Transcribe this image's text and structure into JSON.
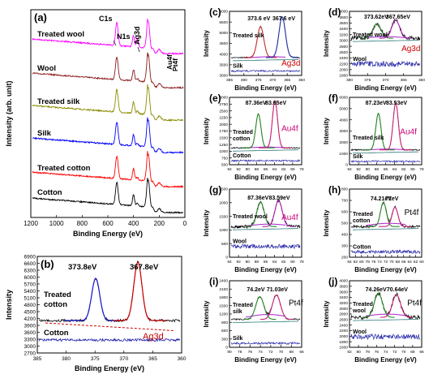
{
  "chart_data": [
    {
      "id": "a",
      "panel_label": "(a)",
      "type": "line",
      "xlabel": "Binding Energy (eV)",
      "ylabel": "Intensity (arb. unit)",
      "xlim": [
        1200,
        0
      ],
      "x_ticks": [
        "1200",
        "1000",
        "800",
        "600",
        "400",
        "200",
        "0"
      ],
      "peak_labels": [
        "C1s",
        "N1s",
        "Ag3d",
        "Au4f",
        "Pt4f"
      ],
      "series": [
        {
          "name": "Treated wool",
          "color": "#ff00ff"
        },
        {
          "name": "Wool",
          "color": "#8b1a1a"
        },
        {
          "name": "Treated silk",
          "color": "#8b8b00"
        },
        {
          "name": "Silk",
          "color": "#0000ff"
        },
        {
          "name": "Treated cotton",
          "color": "#ff0000"
        },
        {
          "name": "Cotton",
          "color": "#000000"
        }
      ]
    },
    {
      "id": "b",
      "panel_label": "(b)",
      "type": "line",
      "xlabel": "Binding Energy (eV)",
      "ylabel": "Intensity",
      "xlim": [
        385,
        360
      ],
      "ylim": [
        2700,
        7000
      ],
      "x_ticks": [
        "385",
        "380",
        "375",
        "370",
        "365",
        "360"
      ],
      "y_ticks": [
        "2700",
        "3000",
        "3300",
        "3600",
        "3900",
        "4200",
        "4500",
        "4800",
        "5100",
        "5400",
        "5700",
        "6000",
        "6300",
        "6600",
        "6900"
      ],
      "peaks": [
        "373.8eV",
        "367.8eV"
      ],
      "element": "Ag3d",
      "series": [
        {
          "name": "Treated cotton"
        },
        {
          "name": "Cotton"
        }
      ]
    },
    {
      "id": "c",
      "panel_label": "(c)",
      "type": "line",
      "xlabel": "Binding Energy (eV)",
      "ylabel": "Intensity",
      "x_ticks": [
        "385",
        "380",
        "375",
        "370",
        "365",
        "360"
      ],
      "y_ticks": [
        "3000",
        "3500",
        "4000",
        "4500",
        "5000",
        "5500",
        "6000"
      ],
      "peaks": [
        "373.6 eV",
        "367.6 eV"
      ],
      "element": "Ag3d",
      "series": [
        {
          "name": "Treated silk"
        },
        {
          "name": "Silk"
        }
      ]
    },
    {
      "id": "d",
      "panel_label": "(d)",
      "type": "line",
      "xlabel": "Binding Energy (eV)",
      "ylabel": "Intensity",
      "x_ticks": [
        "380",
        "375",
        "370",
        "365",
        "360"
      ],
      "y_ticks": [
        "1800",
        "2000",
        "2200",
        "2400",
        "2600",
        "2800",
        "3000",
        "3200",
        "3400",
        "3600",
        "3800",
        "4000"
      ],
      "peaks": [
        "373.62eV",
        "367.65eV"
      ],
      "element": "Ag3d",
      "series": [
        {
          "name": "Treated wool"
        },
        {
          "name": "Wool"
        }
      ]
    },
    {
      "id": "e",
      "panel_label": "(e)",
      "type": "line",
      "xlabel": "Binding Energy (eV)",
      "ylabel": "Intensity",
      "x_ticks": [
        "94",
        "92",
        "90",
        "88",
        "86",
        "84",
        "82",
        "80",
        "78"
      ],
      "y_ticks": [
        "500",
        "750",
        "1000",
        "1250",
        "1500",
        "1750",
        "2000",
        "2250",
        "2500",
        "2750",
        "3000"
      ],
      "peaks": [
        "87.36eV",
        "83.65eV"
      ],
      "element": "Au4f",
      "series": [
        {
          "name": "Treated cotton"
        },
        {
          "name": "Cotton"
        }
      ]
    },
    {
      "id": "f",
      "panel_label": "(f)",
      "type": "line",
      "xlabel": "Binding Energy (eV)",
      "ylabel": "Intensity",
      "x_ticks": [
        "94",
        "92",
        "90",
        "88",
        "86",
        "84",
        "82",
        "80",
        "78"
      ],
      "y_ticks": [
        "0",
        "1000",
        "2000",
        "3000",
        "4000",
        "5000",
        "6000"
      ],
      "peaks": [
        "87.23eV",
        "83.53eV"
      ],
      "element": "Au4f",
      "series": [
        {
          "name": "Treated silk"
        },
        {
          "name": "Silk"
        }
      ]
    },
    {
      "id": "g",
      "panel_label": "(g)",
      "type": "line",
      "xlabel": "Binding Energy (eV)",
      "ylabel": "Intensity",
      "x_ticks": [
        "94",
        "92",
        "90",
        "88",
        "86",
        "84",
        "82",
        "80",
        "78"
      ],
      "y_ticks": [
        "0",
        "500",
        "1000",
        "1500",
        "2000",
        "2500"
      ],
      "peaks": [
        "87.36eV",
        "83.59eV"
      ],
      "element": "Au4f",
      "series": [
        {
          "name": "Treated wool"
        },
        {
          "name": "Wool"
        }
      ]
    },
    {
      "id": "h",
      "panel_label": "(h)",
      "type": "line",
      "xlabel": "Binding Energy (eV)",
      "ylabel": "Intensity",
      "x_ticks": [
        "84",
        "82",
        "80",
        "78",
        "76",
        "74",
        "72",
        "70",
        "68",
        "66",
        "64",
        "62",
        "60"
      ],
      "y_ticks": [
        "200",
        "300",
        "400",
        "500",
        "600",
        "700",
        "800"
      ],
      "peaks": [
        "74.21eV",
        "71eV"
      ],
      "element": "Pt4f",
      "series": [
        {
          "name": "Treated cotton"
        },
        {
          "name": "Cotton"
        }
      ]
    },
    {
      "id": "i",
      "panel_label": "(i)",
      "type": "line",
      "xlabel": "Binding Energy (eV)",
      "ylabel": "Intensity",
      "x_ticks": [
        "80",
        "78",
        "76",
        "74",
        "72",
        "70",
        "68",
        "66"
      ],
      "y_ticks": [
        "0",
        "300",
        "600",
        "900",
        "1200",
        "1500",
        "1800",
        "2100",
        "2400"
      ],
      "peaks": [
        "74.2eV",
        "71.03eV"
      ],
      "element": "Pt4f",
      "series": [
        {
          "name": "Treated silk"
        },
        {
          "name": "Silk"
        }
      ]
    },
    {
      "id": "j",
      "panel_label": "(j)",
      "type": "line",
      "xlabel": "Binding Energy (eV)",
      "ylabel": "Intensity",
      "x_ticks": [
        "82",
        "80",
        "78",
        "76",
        "74",
        "72",
        "70",
        "68",
        "66"
      ],
      "y_ticks": [
        "1600",
        "1800",
        "2000",
        "2200",
        "2400",
        "2600",
        "2800",
        "3000",
        "3200",
        "3400",
        "3600",
        "3800",
        "4000"
      ],
      "peaks": [
        "74.26eV",
        "70.64eV"
      ],
      "element": "Pt4f",
      "series": [
        {
          "name": "Treated wool"
        },
        {
          "name": "Wool"
        }
      ]
    }
  ]
}
